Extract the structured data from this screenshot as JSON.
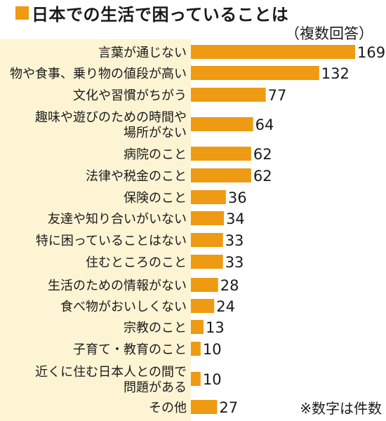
{
  "title": "日本での生活で困っていることは",
  "subtitle": "（複数回答）",
  "note": "※数字は件数",
  "colors": {
    "bar": "#ee9a12",
    "label_panel": "#fdf4d4",
    "text": "#1a1a1a"
  },
  "chart_data": {
    "type": "bar",
    "orientation": "horizontal",
    "title": "日本での生活で困っていることは",
    "subtitle": "（複数回答）",
    "categories": [
      [
        "言葉が通じない"
      ],
      [
        "物や食事、乗り物の値段が高い"
      ],
      [
        "文化や習慣がちがう"
      ],
      [
        "趣味や遊びのための時間や",
        "場所がない"
      ],
      [
        "病院のこと"
      ],
      [
        "法律や税金のこと"
      ],
      [
        "保険のこと"
      ],
      [
        "友達や知り合いがいない"
      ],
      [
        "特に困っていることはない"
      ],
      [
        "住むところのこと"
      ],
      [
        "生活のための情報がない"
      ],
      [
        "食べ物がおいしくない"
      ],
      [
        "宗教のこと"
      ],
      [
        "子育て・教育のこと"
      ],
      [
        "近くに住む日本人との間で",
        "問題がある"
      ],
      [
        "その他"
      ]
    ],
    "values": [
      169,
      132,
      77,
      64,
      62,
      62,
      36,
      34,
      33,
      33,
      28,
      24,
      13,
      10,
      10,
      27
    ],
    "xlim": [
      0,
      169
    ],
    "legend": "none",
    "grid": false
  }
}
